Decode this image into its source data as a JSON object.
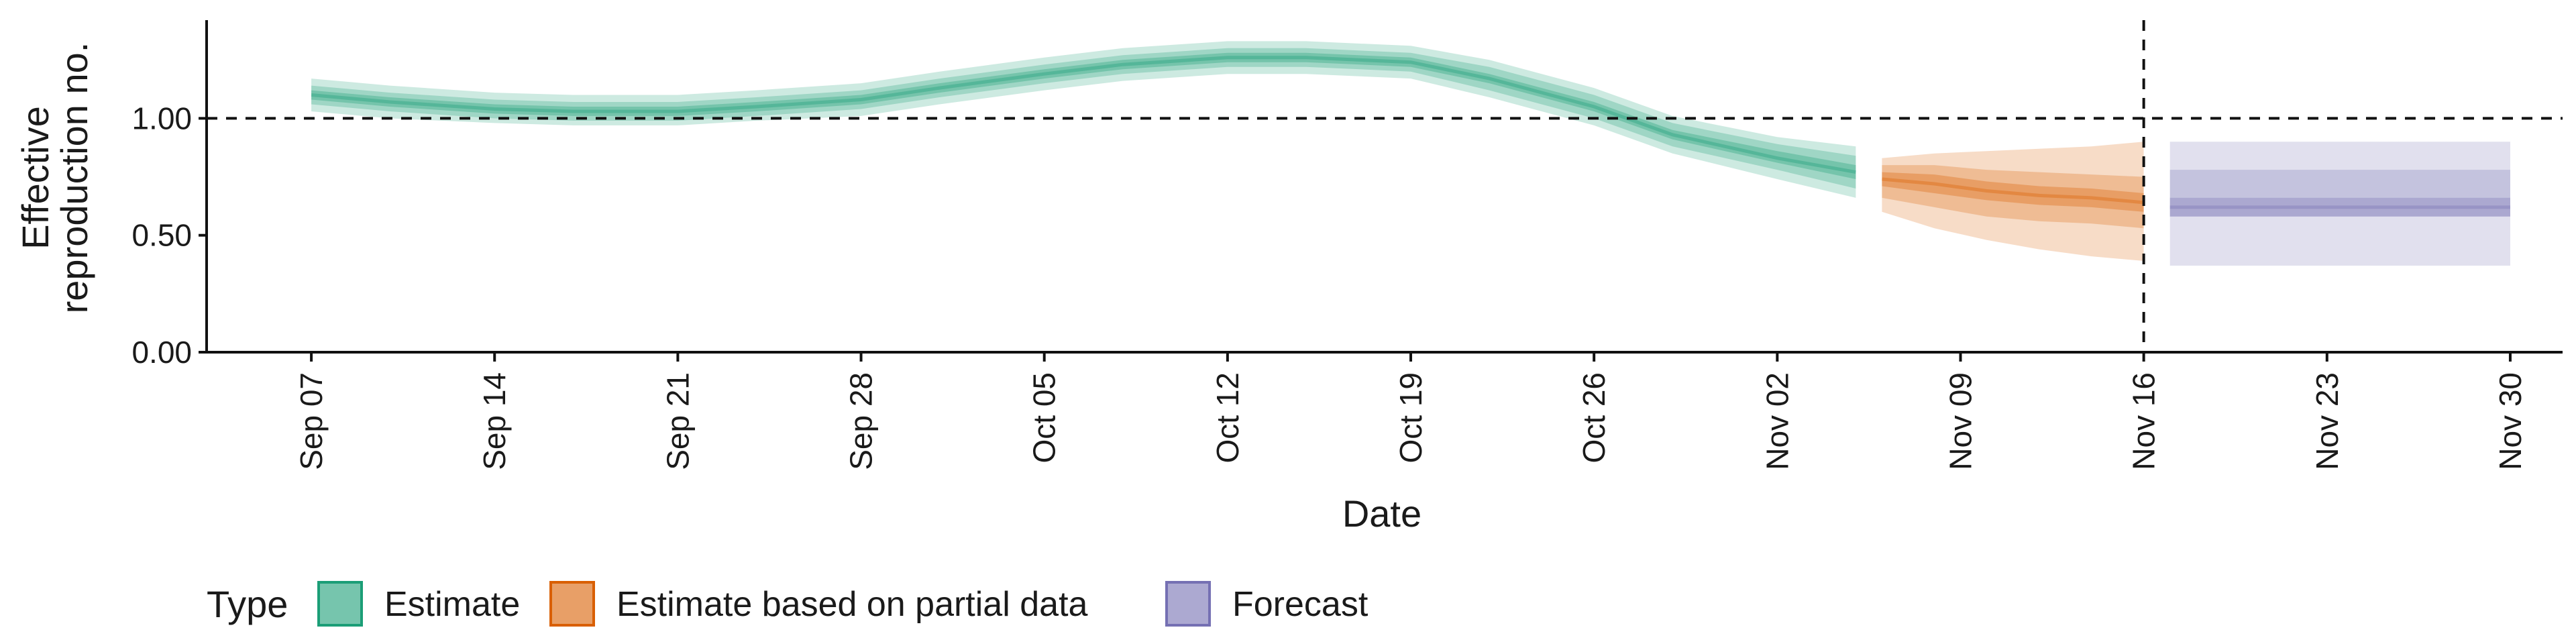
{
  "chart_data": {
    "type": "area",
    "xlabel": "Date",
    "ylabel": [
      "Effective",
      "reproduction no."
    ],
    "ylim": [
      0,
      1.42
    ],
    "yticks": [
      0.0,
      0.5,
      1.0
    ],
    "ytick_labels": [
      "0.00",
      "0.50",
      "1.00"
    ],
    "xlim": [
      "2020-09-03",
      "2020-12-02"
    ],
    "xticks": [
      "2020-09-07",
      "2020-09-14",
      "2020-09-21",
      "2020-09-28",
      "2020-10-05",
      "2020-10-12",
      "2020-10-19",
      "2020-10-26",
      "2020-11-02",
      "2020-11-09",
      "2020-11-16",
      "2020-11-23",
      "2020-11-30"
    ],
    "xtick_labels": [
      "Sep 07",
      "Sep 14",
      "Sep 21",
      "Sep 28",
      "Oct 05",
      "Oct 12",
      "Oct 19",
      "Oct 26",
      "Nov 02",
      "Nov 09",
      "Nov 16",
      "Nov 23",
      "Nov 30"
    ],
    "reference_line_y": 1.0,
    "forecast_date": "2020-11-16",
    "grid": false,
    "legend": {
      "title": "Type",
      "position": "bottom-left",
      "entries": [
        "Estimate",
        "Estimate based on partial data",
        "Forecast"
      ]
    },
    "series": [
      {
        "name": "Estimate",
        "color": "#1b9e77",
        "x": [
          "2020-09-07",
          "2020-09-10",
          "2020-09-14",
          "2020-09-17",
          "2020-09-21",
          "2020-09-24",
          "2020-09-28",
          "2020-10-01",
          "2020-10-05",
          "2020-10-08",
          "2020-10-12",
          "2020-10-15",
          "2020-10-19",
          "2020-10-22",
          "2020-10-26",
          "2020-10-29",
          "2020-11-02",
          "2020-11-05"
        ],
        "median": [
          1.1,
          1.07,
          1.04,
          1.03,
          1.03,
          1.05,
          1.08,
          1.13,
          1.19,
          1.23,
          1.26,
          1.26,
          1.24,
          1.17,
          1.05,
          0.93,
          0.83,
          0.77
        ],
        "inner_lower": [
          1.08,
          1.05,
          1.02,
          1.01,
          1.01,
          1.03,
          1.06,
          1.11,
          1.17,
          1.21,
          1.24,
          1.24,
          1.22,
          1.15,
          1.03,
          0.91,
          0.81,
          0.74
        ],
        "inner_upper": [
          1.12,
          1.09,
          1.06,
          1.05,
          1.05,
          1.07,
          1.1,
          1.15,
          1.21,
          1.25,
          1.28,
          1.28,
          1.26,
          1.19,
          1.07,
          0.95,
          0.86,
          0.8
        ],
        "mid_lower": [
          1.06,
          1.03,
          1.0,
          0.99,
          0.99,
          1.01,
          1.04,
          1.09,
          1.15,
          1.19,
          1.22,
          1.22,
          1.2,
          1.12,
          1.0,
          0.88,
          0.78,
          0.7
        ],
        "mid_upper": [
          1.14,
          1.11,
          1.08,
          1.07,
          1.07,
          1.09,
          1.12,
          1.17,
          1.23,
          1.27,
          1.3,
          1.3,
          1.28,
          1.22,
          1.1,
          0.98,
          0.89,
          0.84
        ],
        "outer_lower": [
          1.03,
          1.0,
          0.98,
          0.97,
          0.97,
          0.99,
          1.01,
          1.06,
          1.12,
          1.16,
          1.19,
          1.19,
          1.17,
          1.09,
          0.97,
          0.85,
          0.74,
          0.66
        ],
        "outer_upper": [
          1.17,
          1.14,
          1.11,
          1.1,
          1.1,
          1.12,
          1.15,
          1.2,
          1.26,
          1.3,
          1.33,
          1.33,
          1.31,
          1.25,
          1.13,
          1.01,
          0.92,
          0.88
        ]
      },
      {
        "name": "Estimate based on partial data",
        "color": "#d95f02",
        "x": [
          "2020-11-06",
          "2020-11-08",
          "2020-11-10",
          "2020-11-12",
          "2020-11-14",
          "2020-11-16"
        ],
        "median": [
          0.74,
          0.72,
          0.69,
          0.67,
          0.66,
          0.64
        ],
        "inner_lower": [
          0.71,
          0.68,
          0.65,
          0.63,
          0.62,
          0.6
        ],
        "inner_upper": [
          0.77,
          0.76,
          0.73,
          0.71,
          0.7,
          0.68
        ],
        "mid_lower": [
          0.66,
          0.62,
          0.58,
          0.56,
          0.55,
          0.53
        ],
        "mid_upper": [
          0.8,
          0.8,
          0.78,
          0.77,
          0.76,
          0.75
        ],
        "outer_lower": [
          0.6,
          0.53,
          0.48,
          0.44,
          0.41,
          0.39
        ],
        "outer_upper": [
          0.83,
          0.85,
          0.86,
          0.87,
          0.88,
          0.9
        ]
      },
      {
        "name": "Forecast",
        "color": "#7570b3",
        "x": [
          "2020-11-17",
          "2020-11-30"
        ],
        "median": [
          0.62,
          0.62
        ],
        "inner_lower": [
          0.58,
          0.58
        ],
        "inner_upper": [
          0.66,
          0.66
        ],
        "mid_lower": [
          0.58,
          0.58
        ],
        "mid_upper": [
          0.78,
          0.78
        ],
        "outer_lower": [
          0.37,
          0.37
        ],
        "outer_upper": [
          0.9,
          0.9
        ]
      }
    ]
  }
}
